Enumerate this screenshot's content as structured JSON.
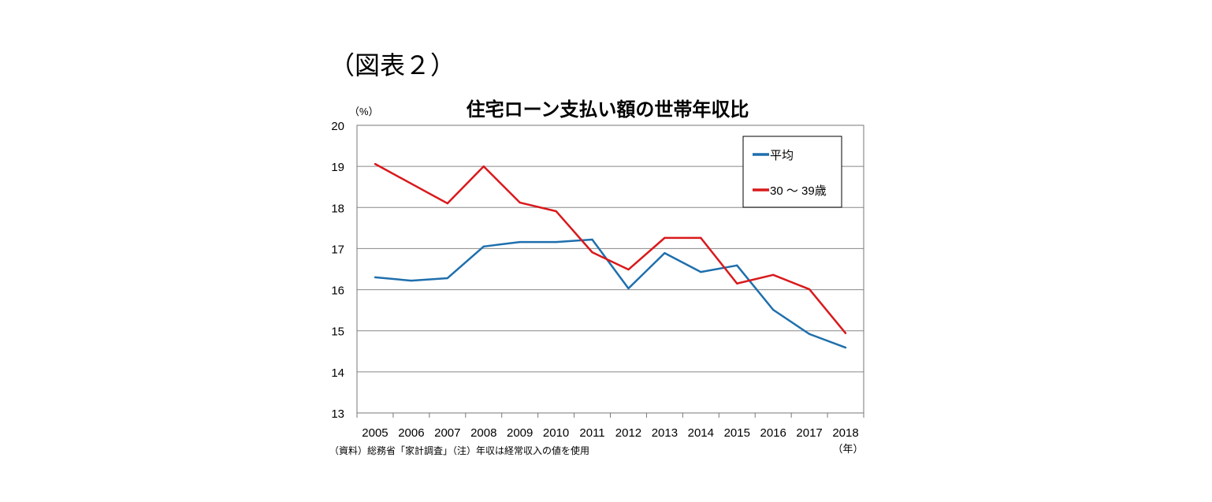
{
  "figure_label": "（図表２）",
  "chart_data": {
    "type": "line",
    "title": "住宅ローン支払い額の世帯年収比",
    "ylabel": "（%）",
    "xlabel": "（年）",
    "ylim": [
      13,
      20
    ],
    "yticks": [
      13,
      14,
      15,
      16,
      17,
      18,
      19,
      20
    ],
    "grid": true,
    "legend_position": "top-right",
    "categories": [
      "2005",
      "2006",
      "2007",
      "2008",
      "2009",
      "2010",
      "2011",
      "2012",
      "2013",
      "2014",
      "2015",
      "2016",
      "2017",
      "2018"
    ],
    "series": [
      {
        "name": "平均",
        "color": "#1f6fad",
        "values": [
          16.3,
          16.22,
          16.28,
          17.05,
          17.16,
          17.16,
          17.22,
          16.03,
          16.89,
          16.43,
          16.59,
          15.51,
          14.92,
          14.59
        ]
      },
      {
        "name": "30 ～ 39歳",
        "color": "#d9191c",
        "values": [
          19.06,
          18.58,
          18.1,
          19.0,
          18.12,
          17.91,
          16.91,
          16.49,
          17.26,
          17.26,
          16.15,
          16.36,
          16.01,
          14.94
        ]
      }
    ],
    "note": "（資料）総務省「家計調査」（注）年収は経常収入の値を使用"
  }
}
